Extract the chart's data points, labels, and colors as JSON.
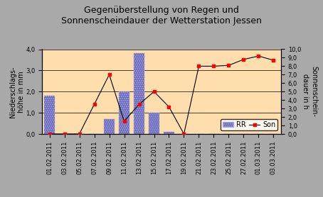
{
  "title_line1": "Gegenüberstellung von Regen und",
  "title_line2": "Sonnenscheindauer der Wetterstation Jessen",
  "ylabel_left": "Niederschlags-\nhöhe in mm",
  "ylabel_right": "Sonnenschein-\ndauer in h",
  "dates": [
    "01.02.2011",
    "03.02.2011",
    "05.02.2011",
    "07.02.2011",
    "09.02.2011",
    "11.02.2011",
    "13.02.2011",
    "15.02.2011",
    "17.02.2011",
    "19.02.2011",
    "21.02.2011",
    "23.02.2011",
    "25.02.2011",
    "27.02.2011",
    "01.03.2011",
    "03.03.2011"
  ],
  "RR": [
    1.8,
    0.0,
    0.0,
    0.0,
    0.7,
    2.0,
    3.8,
    1.0,
    0.1,
    0.0,
    0.0,
    0.0,
    0.0,
    0.0,
    0.0,
    0.0
  ],
  "Son_vals": [
    0.0,
    0.0,
    0.0,
    3.5,
    7.0,
    1.5,
    3.5,
    5.0,
    3.2,
    0.0,
    8.0,
    8.0,
    8.1,
    8.8,
    9.2,
    8.7
  ],
  "ylim_left": [
    0.0,
    4.0
  ],
  "ylim_right": [
    0.0,
    10.0
  ],
  "yticks_left": [
    0.0,
    1.0,
    2.0,
    3.0,
    4.0
  ],
  "yticks_right_labels": [
    "0,0",
    "1,0",
    "2,0",
    "3,0",
    "4,0",
    "5,0",
    "6,0",
    "7,0",
    "8,0",
    "9,0",
    "10,0"
  ],
  "yticks_right_vals": [
    0.0,
    1.0,
    2.0,
    3.0,
    4.0,
    5.0,
    6.0,
    7.0,
    8.0,
    9.0,
    10.0
  ],
  "yticks_left_labels": [
    "0,0",
    "1,0",
    "2,0",
    "3,0",
    "4,0"
  ],
  "background_color": "#FFDEAD",
  "fig_background": "#A9A9A9",
  "bar_color": "#6666BB",
  "bar_edgecolor": "#AAAADD",
  "line_color": "#000000",
  "marker_color": "#FF0000",
  "title_fontsize": 9,
  "axis_label_fontsize": 7,
  "tick_fontsize": 6,
  "legend_fontsize": 7
}
